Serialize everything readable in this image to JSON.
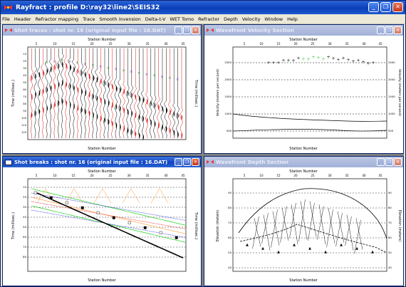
{
  "app": {
    "title": "Rayfract : profile D:\\ray32\\line2\\SEIS32",
    "window_buttons": {
      "minimize": "_",
      "restore": "❐",
      "close": "✕"
    }
  },
  "menu": {
    "items": [
      {
        "label": "File"
      },
      {
        "label": "Header"
      },
      {
        "label": "Refractor mapping"
      },
      {
        "label": "Trace"
      },
      {
        "label": "Smooth invension"
      },
      {
        "label": "Delta-t-V"
      },
      {
        "label": "WET Tomo"
      },
      {
        "label": "Refractor"
      },
      {
        "label": "Depth"
      },
      {
        "label": "Velocity"
      },
      {
        "label": "Window"
      },
      {
        "label": "Help"
      }
    ]
  },
  "windows": {
    "shot_traces": {
      "title": "Shot traces : shot nr. 16 (original input file : 16.DAT)",
      "xlabel": "Station Number",
      "ylabel": "Time (millisec.)",
      "ylabel_right": "Time (millisec.)",
      "xticks": [
        "5",
        "10",
        "15",
        "20",
        "25",
        "30",
        "35",
        "40",
        "45"
      ],
      "yticks": [
        "10",
        "20",
        "30",
        "40",
        "50",
        "60",
        "70",
        "80",
        "90",
        "100",
        "110",
        "120"
      ]
    },
    "velocity_section": {
      "title": "Wavefront Velocity Section",
      "xlabel": "Station Number",
      "ylabel": "Velocity (meters per second)",
      "ylabel_right": "Velocity (meters per second)",
      "xticks": [
        "5",
        "10",
        "15",
        "20",
        "25",
        "30",
        "35",
        "40",
        "45"
      ],
      "yticks": [
        "2500",
        "2000",
        "1500",
        "1000",
        "500"
      ]
    },
    "shot_breaks": {
      "title": "Shot breaks : shot nr. 16 (original input file : 16.DAT)",
      "xlabel": "Station Number",
      "ylabel": "Time (millisec.)",
      "ylabel_right": "Time (millisec.)",
      "xticks": [
        "5",
        "10",
        "15",
        "20",
        "25",
        "30",
        "35",
        "40",
        "45"
      ],
      "yticks": [
        "10",
        "20",
        "30",
        "40",
        "50",
        "60",
        "70",
        "80"
      ]
    },
    "depth_section": {
      "title": "Wavefront Depth Section",
      "xlabel": "Station Number",
      "ylabel": "Elevation (meters)",
      "ylabel_right": "Elevation (meters)",
      "xticks": [
        "5",
        "10",
        "15",
        "20",
        "25",
        "30",
        "35",
        "40",
        "45"
      ],
      "yticks": [
        "90",
        "80",
        "70",
        "60",
        "50",
        "40"
      ]
    }
  },
  "colors": {
    "title_active": "#1146c2",
    "title_inactive": "#a2b1d8",
    "mdi_background": "#808080",
    "trace_red": "#e01010",
    "trace_black": "#000000",
    "velocity_green": "#33cc33",
    "break_blue": "#2222dd",
    "break_green": "#00cc00",
    "break_orange": "#ff9933"
  }
}
